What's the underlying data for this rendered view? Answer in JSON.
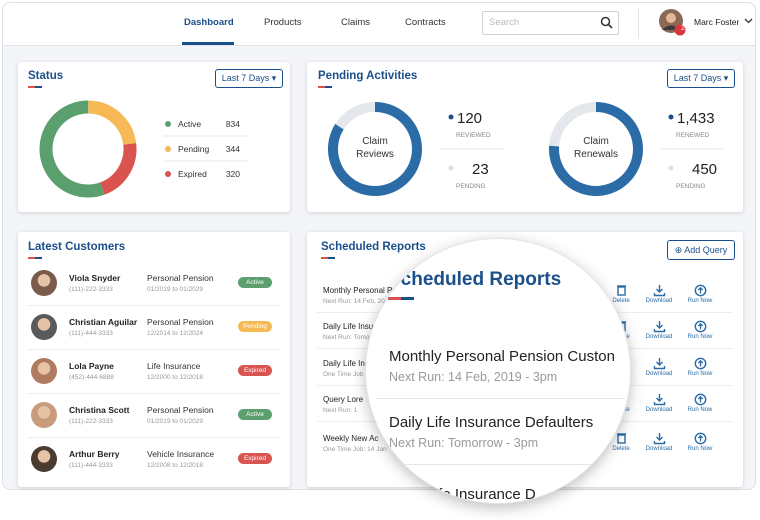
{
  "nav": {
    "items": [
      "Dashboard",
      "Products",
      "Claims",
      "Contracts"
    ],
    "active": 0,
    "search_placeholder": "Search",
    "user": "Marc Foster",
    "badge": 2
  },
  "status": {
    "title": "Status",
    "range": "Last 7 Days",
    "items": [
      {
        "label": "Active",
        "value": 834,
        "color": "#5c9f6e"
      },
      {
        "label": "Pending",
        "value": 344,
        "color": "#f6b955"
      },
      {
        "label": "Expired",
        "value": 320,
        "color": "#d9534f"
      }
    ]
  },
  "pending": {
    "title": "Pending Activities",
    "range": "Last 7 Days",
    "groups": [
      {
        "label": "Claim Reviews",
        "primary": {
          "value": 120,
          "value_label": "120",
          "label": "REVIEWED"
        },
        "secondary": {
          "value": 23,
          "value_label": "23",
          "label": "PENDING"
        }
      },
      {
        "label": "Claim Renewals",
        "primary": {
          "value": 1433,
          "value_label": "1,433",
          "label": "RENEWED"
        },
        "secondary": {
          "value": 450,
          "value_label": "450",
          "label": "PENDING"
        }
      }
    ]
  },
  "customers": {
    "title": "Latest Customers",
    "rows": [
      {
        "name": "Viola Snyder",
        "phone": "(111)-222-3333",
        "plan": "Personal Pension",
        "period": "01/2019 to 01/2029",
        "status": "Active"
      },
      {
        "name": "Christian Aguilar",
        "phone": "(111)-444-3333",
        "plan": "Personal Pension",
        "period": "12/2014 to 12/2024",
        "status": "Pending"
      },
      {
        "name": "Lola Payne",
        "phone": "(452)-444-6888",
        "plan": "Life Insurance",
        "period": "12/2000 to 12/2018",
        "status": "Expired"
      },
      {
        "name": "Christina Scott",
        "phone": "(111)-222-3333",
        "plan": "Personal Pension",
        "period": "01/2019 to 01/2029",
        "status": "Active"
      },
      {
        "name": "Arthur Berry",
        "phone": "(111)-444-3333",
        "plan": "Vehicle Insurance",
        "period": "12/2008 to 12/2018",
        "status": "Expired"
      }
    ]
  },
  "reports": {
    "title": "Scheduled Reports",
    "add": "Add Query",
    "actions": [
      "Delete",
      "Download",
      "Run Now"
    ],
    "rows": [
      {
        "title": "Monthly Personal Pension Custon",
        "next": "Next Run: 14 Feb, 2019 - 3pm"
      },
      {
        "title": "Daily Life Insurance Defaulters",
        "next": "Next Run: Tomorrow -  3pm"
      },
      {
        "title": "Daily Life Insurance D",
        "next": "One Time Job"
      },
      {
        "title": "Query Lore",
        "next": "Next Run: 1"
      },
      {
        "title": "Weekly New Ac",
        "next": "One Time Job: 14 Jan"
      }
    ]
  }
}
